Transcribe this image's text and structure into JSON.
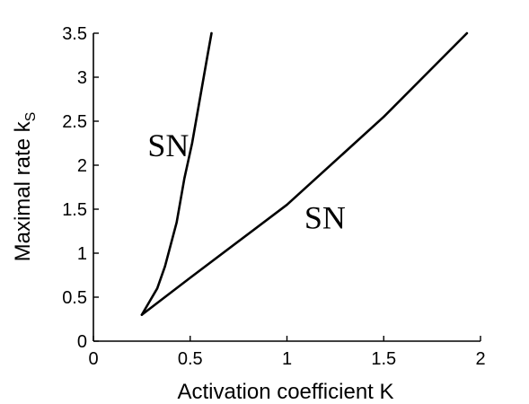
{
  "chart_data": {
    "type": "line",
    "title": "",
    "xlabel": "Activation coefficient K",
    "ylabel": "Maximal rate k",
    "ylabel_subscript": "S",
    "xlim": [
      0,
      2
    ],
    "ylim": [
      0,
      3.5
    ],
    "xticks": [
      "0",
      "0.5",
      "1",
      "1.5",
      "2"
    ],
    "yticks": [
      "0",
      "0.5",
      "1",
      "1.5",
      "2",
      "2.5",
      "3",
      "3.5"
    ],
    "grid": false,
    "legend": "none",
    "line_color": "#000000",
    "series": [
      {
        "x": [
          0.25,
          0.29,
          0.33,
          0.37,
          0.4,
          0.43,
          0.45,
          0.47,
          0.49,
          0.51,
          0.53,
          0.55,
          0.57,
          0.59,
          0.61
        ],
        "y": [
          0.3,
          0.45,
          0.6,
          0.85,
          1.1,
          1.35,
          1.6,
          1.85,
          2.05,
          2.25,
          2.5,
          2.75,
          3.0,
          3.25,
          3.5
        ]
      },
      {
        "x": [
          0.25,
          0.5,
          1.0,
          1.5,
          1.93
        ],
        "y": [
          0.3,
          0.72,
          1.55,
          2.55,
          3.5
        ]
      }
    ],
    "annotations": [
      {
        "text": "SN",
        "x": 0.28,
        "y": 2.1
      },
      {
        "text": "SN",
        "x": 1.09,
        "y": 1.28
      }
    ]
  }
}
